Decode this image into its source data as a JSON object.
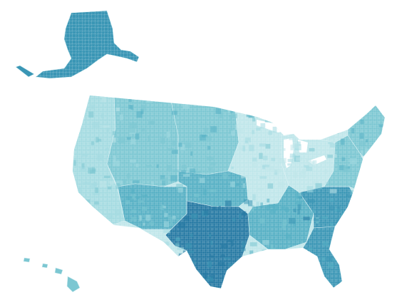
{
  "map": {
    "type": "choropleth",
    "projection": "albers-usa",
    "level": "county",
    "legend": null,
    "title": "",
    "colors": {
      "background": "#ffffff",
      "border": "#d9f0f3",
      "light": "#a4dbe1",
      "lightest": "#bfe6ea",
      "medium": "#7cc7d2",
      "mid_dark": "#56b0c4",
      "dark": "#3a96b5",
      "darkest": "#2579a3"
    },
    "regions": [
      {
        "id": "alaska",
        "intensity": "dark"
      },
      {
        "id": "hawaii",
        "intensity": "medium"
      },
      {
        "id": "pacific-west",
        "intensity": "light"
      },
      {
        "id": "mountain-west",
        "intensity": "medium"
      },
      {
        "id": "northern-plains",
        "intensity": "medium"
      },
      {
        "id": "southwest",
        "intensity": "mid_dark"
      },
      {
        "id": "texas",
        "intensity": "darkest"
      },
      {
        "id": "great-plains",
        "intensity": "mid_dark"
      },
      {
        "id": "midwest",
        "intensity": "lightest"
      },
      {
        "id": "great-lakes",
        "intensity": "lightest"
      },
      {
        "id": "south",
        "intensity": "mid_dark"
      },
      {
        "id": "southeast",
        "intensity": "dark"
      },
      {
        "id": "florida",
        "intensity": "dark"
      },
      {
        "id": "mid-atlantic",
        "intensity": "medium"
      },
      {
        "id": "new-england",
        "intensity": "medium"
      }
    ]
  }
}
